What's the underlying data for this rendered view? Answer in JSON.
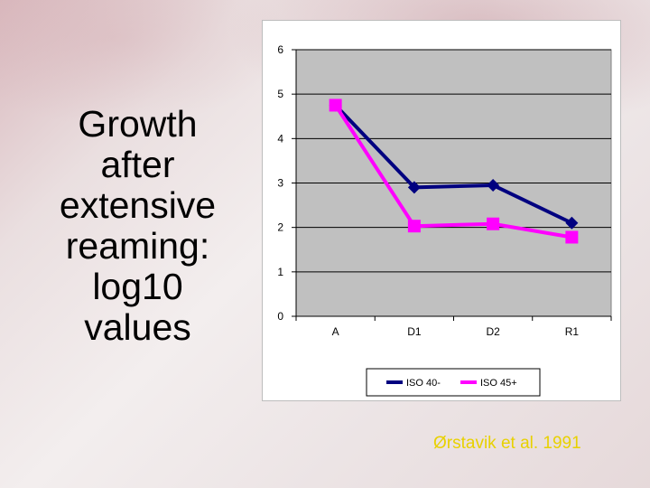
{
  "slide": {
    "title_lines": [
      "Growth",
      "after",
      "extensive",
      "reaming:",
      "log10",
      "values"
    ],
    "citation": "Ørstavik et al. 1991"
  },
  "chart_data": {
    "type": "line",
    "categories": [
      "A",
      "D1",
      "D2",
      "R1"
    ],
    "ylim": [
      0,
      6
    ],
    "yticks": [
      0,
      1,
      2,
      3,
      4,
      5,
      6
    ],
    "grid": true,
    "legend": "bottom",
    "series": [
      {
        "name": "ISO 40-",
        "values": [
          4.75,
          2.9,
          2.95,
          2.1
        ],
        "color": "#000080",
        "marker": "diamond"
      },
      {
        "name": "ISO 45+",
        "values": [
          4.75,
          2.03,
          2.08,
          1.78
        ],
        "color": "#ff00ff",
        "marker": "square"
      }
    ],
    "plot_background": "#c0c0c0"
  }
}
